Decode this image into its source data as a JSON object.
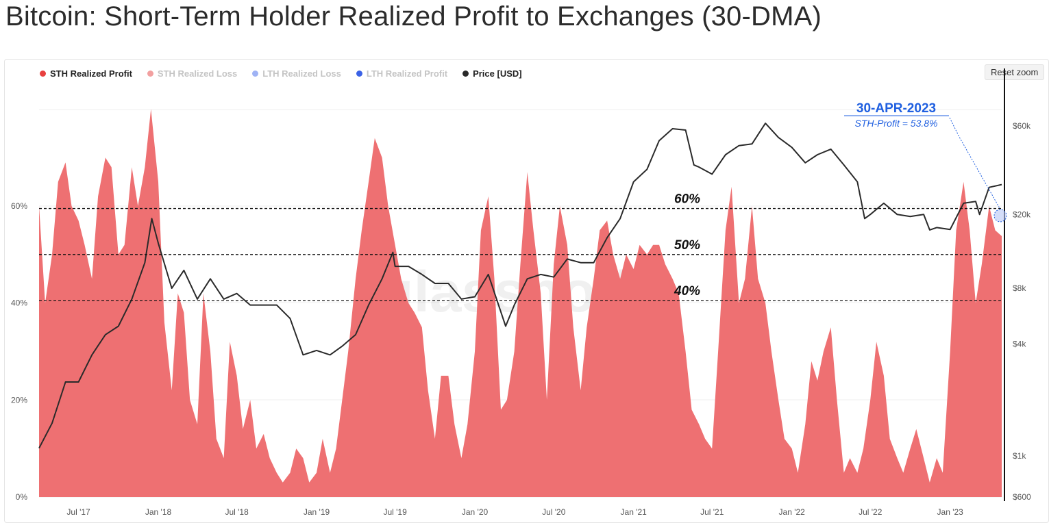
{
  "title": "Bitcoin: Short-Term Holder Realized Profit to Exchanges (30-DMA)",
  "reset_zoom_label": "Reset zoom",
  "watermark": "glassnode",
  "colors": {
    "sth_profit": "#e8403f",
    "sth_area": "#ee7072",
    "sth_loss": "#f2a0a0",
    "lth_loss": "#9fb3f5",
    "lth_profit": "#3b62e6",
    "price": "#2a2a2a",
    "annotation": "#1f5fe0"
  },
  "legend": [
    {
      "label": "STH Realized Profit",
      "color": "#e8403f",
      "active": true
    },
    {
      "label": "STH Realized Loss",
      "color": "#f2a0a0",
      "active": false
    },
    {
      "label": "LTH Realized Loss",
      "color": "#9fb3f5",
      "active": false
    },
    {
      "label": "LTH Realized Profit",
      "color": "#3b62e6",
      "active": false
    },
    {
      "label": "Price [USD]",
      "color": "#2a2a2a",
      "active": true
    }
  ],
  "chart_data": {
    "type": "area",
    "x_ticks": [
      "Jul '17",
      "Jan '18",
      "Jul '18",
      "Jan '19",
      "Jul '19",
      "Jan '20",
      "Jul '20",
      "Jan '21",
      "Jul '21",
      "Jan '22",
      "Jul '22",
      "Jan '23"
    ],
    "y_left": {
      "ticks": [
        "0%",
        "20%",
        "40%",
        "60%"
      ],
      "range": [
        0,
        80
      ]
    },
    "y_right": {
      "scale": "log",
      "ticks": [
        "$600",
        "$1k",
        "$4k",
        "$8k",
        "$20k",
        "$60k"
      ],
      "range": [
        600,
        90000
      ]
    },
    "reference_lines": [
      {
        "label": "60%",
        "value": 59.5
      },
      {
        "label": "50%",
        "value": 50
      },
      {
        "label": "40%",
        "value": 40.5
      }
    ],
    "annotation": {
      "date": "30-APR-2023",
      "text": "STH-Profit = 53.8%"
    },
    "series": [
      {
        "name": "STH Realized Profit",
        "unit": "%",
        "points": [
          [
            "2017-04-01",
            60
          ],
          [
            "2017-04-15",
            40
          ],
          [
            "2017-05-01",
            50
          ],
          [
            "2017-05-15",
            65
          ],
          [
            "2017-06-01",
            69
          ],
          [
            "2017-06-15",
            60
          ],
          [
            "2017-07-01",
            57
          ],
          [
            "2017-07-15",
            52
          ],
          [
            "2017-08-01",
            45
          ],
          [
            "2017-08-15",
            62
          ],
          [
            "2017-09-01",
            70
          ],
          [
            "2017-09-15",
            68
          ],
          [
            "2017-10-01",
            50
          ],
          [
            "2017-10-15",
            52
          ],
          [
            "2017-11-01",
            68
          ],
          [
            "2017-11-15",
            60
          ],
          [
            "2017-12-01",
            68
          ],
          [
            "2017-12-15",
            80
          ],
          [
            "2018-01-01",
            65
          ],
          [
            "2018-01-15",
            36
          ],
          [
            "2018-02-01",
            22
          ],
          [
            "2018-02-15",
            42
          ],
          [
            "2018-03-01",
            38
          ],
          [
            "2018-03-15",
            20
          ],
          [
            "2018-04-01",
            15
          ],
          [
            "2018-04-15",
            42
          ],
          [
            "2018-05-01",
            30
          ],
          [
            "2018-05-15",
            12
          ],
          [
            "2018-06-01",
            8
          ],
          [
            "2018-06-15",
            32
          ],
          [
            "2018-07-01",
            25
          ],
          [
            "2018-07-15",
            14
          ],
          [
            "2018-08-01",
            20
          ],
          [
            "2018-08-15",
            10
          ],
          [
            "2018-09-01",
            13
          ],
          [
            "2018-09-15",
            8
          ],
          [
            "2018-10-01",
            5
          ],
          [
            "2018-10-15",
            3
          ],
          [
            "2018-11-01",
            5
          ],
          [
            "2018-11-15",
            10
          ],
          [
            "2018-12-01",
            8
          ],
          [
            "2018-12-15",
            3
          ],
          [
            "2019-01-01",
            5
          ],
          [
            "2019-01-15",
            12
          ],
          [
            "2019-02-01",
            5
          ],
          [
            "2019-02-15",
            10
          ],
          [
            "2019-03-01",
            20
          ],
          [
            "2019-03-15",
            30
          ],
          [
            "2019-04-01",
            45
          ],
          [
            "2019-04-15",
            55
          ],
          [
            "2019-05-01",
            65
          ],
          [
            "2019-05-15",
            74
          ],
          [
            "2019-06-01",
            70
          ],
          [
            "2019-06-15",
            60
          ],
          [
            "2019-07-01",
            52
          ],
          [
            "2019-07-15",
            45
          ],
          [
            "2019-08-01",
            40
          ],
          [
            "2019-08-15",
            38
          ],
          [
            "2019-09-01",
            35
          ],
          [
            "2019-09-15",
            22
          ],
          [
            "2019-10-01",
            12
          ],
          [
            "2019-10-15",
            25
          ],
          [
            "2019-11-01",
            25
          ],
          [
            "2019-11-15",
            15
          ],
          [
            "2019-12-01",
            8
          ],
          [
            "2019-12-15",
            15
          ],
          [
            "2020-01-01",
            30
          ],
          [
            "2020-01-15",
            55
          ],
          [
            "2020-02-01",
            62
          ],
          [
            "2020-02-15",
            45
          ],
          [
            "2020-03-01",
            18
          ],
          [
            "2020-03-15",
            20
          ],
          [
            "2020-04-01",
            30
          ],
          [
            "2020-04-15",
            48
          ],
          [
            "2020-05-01",
            67
          ],
          [
            "2020-05-15",
            55
          ],
          [
            "2020-06-01",
            42
          ],
          [
            "2020-06-15",
            20
          ],
          [
            "2020-07-01",
            48
          ],
          [
            "2020-07-15",
            60
          ],
          [
            "2020-08-01",
            52
          ],
          [
            "2020-08-15",
            35
          ],
          [
            "2020-09-01",
            22
          ],
          [
            "2020-09-15",
            35
          ],
          [
            "2020-10-01",
            45
          ],
          [
            "2020-10-15",
            55
          ],
          [
            "2020-11-01",
            57
          ],
          [
            "2020-11-15",
            50
          ],
          [
            "2020-12-01",
            45
          ],
          [
            "2020-12-15",
            50
          ],
          [
            "2021-01-01",
            47
          ],
          [
            "2021-01-15",
            52
          ],
          [
            "2021-02-01",
            50
          ],
          [
            "2021-02-15",
            52
          ],
          [
            "2021-03-01",
            52
          ],
          [
            "2021-03-15",
            48
          ],
          [
            "2021-04-01",
            45
          ],
          [
            "2021-04-15",
            42
          ],
          [
            "2021-05-01",
            30
          ],
          [
            "2021-05-15",
            18
          ],
          [
            "2021-06-01",
            15
          ],
          [
            "2021-06-15",
            12
          ],
          [
            "2021-07-01",
            10
          ],
          [
            "2021-07-15",
            30
          ],
          [
            "2021-08-01",
            55
          ],
          [
            "2021-08-15",
            64
          ],
          [
            "2021-09-01",
            40
          ],
          [
            "2021-09-15",
            45
          ],
          [
            "2021-10-01",
            60
          ],
          [
            "2021-10-15",
            45
          ],
          [
            "2021-11-01",
            40
          ],
          [
            "2021-11-15",
            30
          ],
          [
            "2021-12-01",
            20
          ],
          [
            "2021-12-15",
            12
          ],
          [
            "2022-01-01",
            10
          ],
          [
            "2022-01-15",
            5
          ],
          [
            "2022-02-01",
            15
          ],
          [
            "2022-02-15",
            28
          ],
          [
            "2022-03-01",
            24
          ],
          [
            "2022-03-15",
            30
          ],
          [
            "2022-04-01",
            35
          ],
          [
            "2022-04-15",
            20
          ],
          [
            "2022-05-01",
            5
          ],
          [
            "2022-05-15",
            8
          ],
          [
            "2022-06-01",
            5
          ],
          [
            "2022-06-15",
            10
          ],
          [
            "2022-07-01",
            20
          ],
          [
            "2022-07-15",
            32
          ],
          [
            "2022-08-01",
            25
          ],
          [
            "2022-08-15",
            12
          ],
          [
            "2022-09-01",
            8
          ],
          [
            "2022-09-15",
            5
          ],
          [
            "2022-10-01",
            10
          ],
          [
            "2022-10-15",
            14
          ],
          [
            "2022-11-01",
            8
          ],
          [
            "2022-11-15",
            3
          ],
          [
            "2022-12-01",
            8
          ],
          [
            "2022-12-15",
            5
          ],
          [
            "2023-01-01",
            30
          ],
          [
            "2023-01-15",
            55
          ],
          [
            "2023-02-01",
            65
          ],
          [
            "2023-02-15",
            55
          ],
          [
            "2023-03-01",
            40
          ],
          [
            "2023-03-15",
            48
          ],
          [
            "2023-04-01",
            60
          ],
          [
            "2023-04-15",
            55
          ],
          [
            "2023-04-30",
            53.8
          ]
        ]
      },
      {
        "name": "Price [USD]",
        "unit": "USD",
        "points": [
          [
            "2017-04-01",
            1100
          ],
          [
            "2017-05-01",
            1500
          ],
          [
            "2017-06-01",
            2500
          ],
          [
            "2017-07-01",
            2500
          ],
          [
            "2017-08-01",
            3500
          ],
          [
            "2017-09-01",
            4500
          ],
          [
            "2017-10-01",
            5000
          ],
          [
            "2017-11-01",
            7000
          ],
          [
            "2017-12-01",
            11000
          ],
          [
            "2017-12-17",
            19000
          ],
          [
            "2018-01-01",
            14000
          ],
          [
            "2018-02-01",
            8000
          ],
          [
            "2018-03-01",
            10000
          ],
          [
            "2018-04-01",
            7000
          ],
          [
            "2018-05-01",
            9000
          ],
          [
            "2018-06-01",
            7000
          ],
          [
            "2018-07-01",
            7500
          ],
          [
            "2018-08-01",
            6500
          ],
          [
            "2018-09-01",
            6500
          ],
          [
            "2018-10-01",
            6500
          ],
          [
            "2018-11-01",
            5500
          ],
          [
            "2018-12-01",
            3500
          ],
          [
            "2019-01-01",
            3700
          ],
          [
            "2019-02-01",
            3500
          ],
          [
            "2019-03-01",
            3900
          ],
          [
            "2019-04-01",
            4500
          ],
          [
            "2019-05-01",
            6500
          ],
          [
            "2019-06-01",
            9000
          ],
          [
            "2019-06-26",
            12500
          ],
          [
            "2019-07-01",
            10500
          ],
          [
            "2019-08-01",
            10500
          ],
          [
            "2019-09-01",
            9500
          ],
          [
            "2019-10-01",
            8500
          ],
          [
            "2019-11-01",
            8500
          ],
          [
            "2019-12-01",
            7000
          ],
          [
            "2020-01-01",
            7200
          ],
          [
            "2020-02-01",
            9500
          ],
          [
            "2020-03-12",
            5000
          ],
          [
            "2020-04-01",
            6500
          ],
          [
            "2020-05-01",
            9000
          ],
          [
            "2020-06-01",
            9500
          ],
          [
            "2020-07-01",
            9200
          ],
          [
            "2020-08-01",
            11500
          ],
          [
            "2020-09-01",
            11000
          ],
          [
            "2020-10-01",
            11000
          ],
          [
            "2020-11-01",
            15000
          ],
          [
            "2020-12-01",
            19000
          ],
          [
            "2021-01-01",
            30000
          ],
          [
            "2021-02-01",
            35000
          ],
          [
            "2021-03-01",
            50000
          ],
          [
            "2021-04-01",
            58000
          ],
          [
            "2021-05-01",
            57000
          ],
          [
            "2021-05-20",
            37000
          ],
          [
            "2021-06-01",
            36000
          ],
          [
            "2021-07-01",
            33000
          ],
          [
            "2021-08-01",
            42000
          ],
          [
            "2021-09-01",
            47000
          ],
          [
            "2021-10-01",
            48000
          ],
          [
            "2021-11-01",
            62000
          ],
          [
            "2021-12-01",
            52000
          ],
          [
            "2022-01-01",
            46000
          ],
          [
            "2022-02-01",
            38000
          ],
          [
            "2022-03-01",
            42000
          ],
          [
            "2022-04-01",
            45000
          ],
          [
            "2022-05-01",
            37000
          ],
          [
            "2022-06-01",
            30000
          ],
          [
            "2022-06-18",
            19000
          ],
          [
            "2022-07-01",
            20000
          ],
          [
            "2022-08-01",
            23000
          ],
          [
            "2022-09-01",
            20000
          ],
          [
            "2022-10-01",
            19500
          ],
          [
            "2022-11-01",
            20000
          ],
          [
            "2022-11-15",
            16500
          ],
          [
            "2022-12-01",
            17000
          ],
          [
            "2023-01-01",
            16600
          ],
          [
            "2023-02-01",
            23000
          ],
          [
            "2023-03-01",
            23500
          ],
          [
            "2023-03-10",
            20000
          ],
          [
            "2023-04-01",
            28000
          ],
          [
            "2023-04-30",
            29000
          ]
        ]
      }
    ]
  }
}
